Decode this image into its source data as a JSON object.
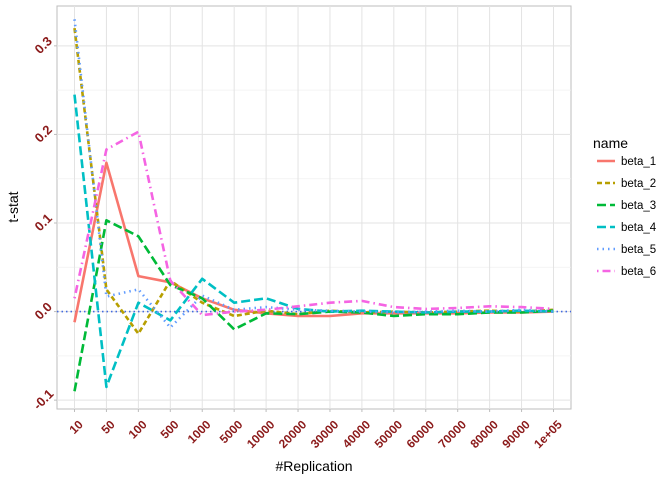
{
  "chart_data": {
    "type": "line",
    "title": "",
    "xlabel": "#Replication",
    "ylabel": "t-stat",
    "categories": [
      "10",
      "50",
      "100",
      "500",
      "1000",
      "5000",
      "10000",
      "20000",
      "30000",
      "40000",
      "50000",
      "60000",
      "70000",
      "80000",
      "90000",
      "1e+05"
    ],
    "ylim": [
      -0.11,
      0.345
    ],
    "yticks": [
      -0.1,
      0.0,
      0.1,
      0.2,
      0.3
    ],
    "ytick_labels": [
      "-0.1",
      "0.0",
      "0.1",
      "0.2",
      "0.3"
    ],
    "grid": true,
    "hline": {
      "y": 0,
      "color": "#4169e1",
      "style": "dotted"
    },
    "tick_label_color": "#8b1a1a",
    "legend": {
      "title": "name",
      "position": "right"
    },
    "series": [
      {
        "name": "beta_1",
        "color": "#f8766d",
        "dash": "solid",
        "values": [
          -0.012,
          0.168,
          0.04,
          0.033,
          0.015,
          0.002,
          -0.002,
          -0.005,
          -0.005,
          -0.002,
          -0.002,
          -0.002,
          -0.002,
          -0.001,
          -0.001,
          0.0
        ]
      },
      {
        "name": "beta_2",
        "color": "#b79f00",
        "dash": "dashed",
        "values": [
          0.32,
          0.025,
          -0.025,
          0.035,
          0.01,
          -0.005,
          0.001,
          -0.003,
          0.001,
          -0.001,
          0.0,
          -0.001,
          0.0,
          0.001,
          0.0,
          0.002
        ]
      },
      {
        "name": "beta_3",
        "color": "#00ba38",
        "dash": "longdash",
        "values": [
          -0.09,
          0.103,
          0.085,
          0.03,
          0.015,
          -0.02,
          -0.002,
          -0.003,
          0.0,
          -0.001,
          -0.005,
          -0.003,
          -0.003,
          -0.001,
          -0.001,
          0.001
        ]
      },
      {
        "name": "beta_4",
        "color": "#00bfc4",
        "dash": "longdash",
        "values": [
          0.245,
          -0.085,
          0.01,
          -0.01,
          0.037,
          0.01,
          0.015,
          0.003,
          0.0,
          0.001,
          0.0,
          -0.001,
          0.0,
          0.0,
          0.001,
          0.0
        ]
      },
      {
        "name": "beta_5",
        "color": "#619cff",
        "dash": "dotted",
        "values": [
          0.33,
          0.017,
          0.025,
          -0.018,
          0.018,
          0.002,
          0.005,
          0.002,
          0.001,
          0.0,
          -0.001,
          0.0,
          0.001,
          0.0,
          0.002,
          0.0
        ]
      },
      {
        "name": "beta_6",
        "color": "#f564e3",
        "dash": "dotdash",
        "values": [
          0.015,
          0.183,
          0.203,
          0.035,
          -0.004,
          0.0,
          0.002,
          0.006,
          0.01,
          0.012,
          0.005,
          0.003,
          0.004,
          0.006,
          0.005,
          0.003
        ]
      }
    ]
  }
}
